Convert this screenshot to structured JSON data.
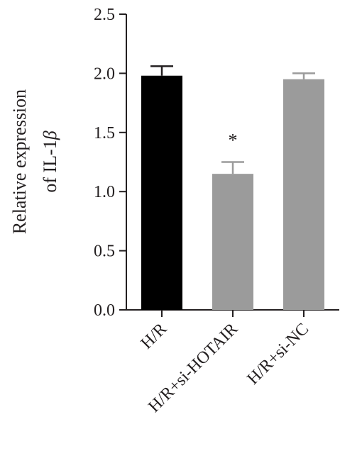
{
  "chart_data": {
    "type": "bar",
    "categories": [
      "H/R",
      "H/R+si-HOTAIR",
      "H/R+si-NC"
    ],
    "values": [
      1.98,
      1.15,
      1.95
    ],
    "errors": [
      0.08,
      0.1,
      0.05
    ],
    "colors": [
      "#000000",
      "#9b9b9b",
      "#9b9b9b"
    ],
    "annotations": [
      "",
      "*",
      ""
    ],
    "ylabel_line1": "Relative expression",
    "ylabel_line2": "of IL-1",
    "ylabel_symbol": "β",
    "ylim": [
      0,
      2.5
    ],
    "yticks": [
      "0.0",
      "0.5",
      "1.0",
      "1.5",
      "2.0",
      "2.5"
    ],
    "grid": false,
    "legend": "none"
  }
}
